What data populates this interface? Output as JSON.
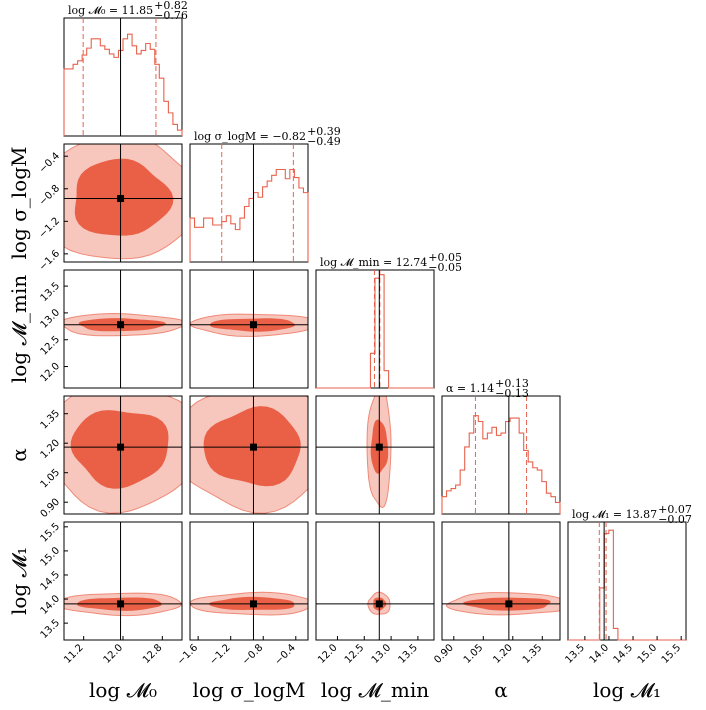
{
  "chart_data": {
    "type": "corner",
    "colors": {
      "hist": "#e8624c",
      "inner": "#ea6047",
      "outer": "#f7c6bd",
      "outer_line": "#ef8a78",
      "marker": "#000000",
      "axes": "#000000"
    },
    "parameters": [
      {
        "key": "logM0",
        "label": "log 𝓜₀",
        "range": [
          10.8,
          13.2
        ],
        "ticks": [
          11.2,
          12.0,
          12.8
        ],
        "tick_labels": [
          "11.2",
          "12.0",
          "12.8"
        ],
        "best": 11.95,
        "q16": 11.19,
        "q50": 11.85,
        "q84": 12.67,
        "title": "log 𝓜₀ = 11.85",
        "sup": "+0.82",
        "sub": "−0.76",
        "hist": [
          0.58,
          0.58,
          0.62,
          0.65,
          0.7,
          0.76,
          0.84,
          0.84,
          0.78,
          0.75,
          0.71,
          0.68,
          0.74,
          0.84,
          0.88,
          0.78,
          0.71,
          0.74,
          0.8,
          0.75,
          0.62,
          0.5,
          0.3,
          0.2,
          0.1,
          0.05
        ]
      },
      {
        "key": "logsigma",
        "label": "log σ_logM",
        "range": [
          -1.7,
          -0.25
        ],
        "ticks": [
          -1.6,
          -1.2,
          -0.8,
          -0.4
        ],
        "tick_labels": [
          "−1.6",
          "−1.2",
          "−0.8",
          "−0.4"
        ],
        "best": -0.92,
        "q16": -1.31,
        "q50": -0.82,
        "q84": -0.43,
        "title": "log σ_logM = −0.82",
        "sup": "+0.39",
        "sub": "−0.49",
        "hist": [
          0.38,
          0.3,
          0.3,
          0.38,
          0.38,
          0.32,
          0.32,
          0.35,
          0.4,
          0.33,
          0.28,
          0.38,
          0.48,
          0.55,
          0.6,
          0.56,
          0.65,
          0.7,
          0.75,
          0.8,
          0.8,
          0.72,
          0.8,
          0.73,
          0.64,
          0.6
        ]
      },
      {
        "key": "logMmin",
        "label": "log 𝓜_min",
        "range": [
          11.6,
          13.8
        ],
        "ticks": [
          12.0,
          12.5,
          13.0,
          13.5
        ],
        "tick_labels": [
          "12.0",
          "12.5",
          "13.0",
          "13.5"
        ],
        "best": 12.78,
        "q16": 12.69,
        "q50": 12.74,
        "q84": 12.79,
        "title": "log 𝓜_min = 12.74",
        "sup": "+0.05",
        "sub": "−0.05",
        "hist": [
          0.0,
          0.0,
          0.0,
          0.0,
          0.0,
          0.0,
          0.0,
          0.0,
          0.0,
          0.0,
          0.0,
          0.0,
          0.3,
          0.95,
          0.98,
          0.15,
          0.0,
          0.0,
          0.0,
          0.0,
          0.0,
          0.0,
          0.0,
          0.0,
          0.0,
          0.0
        ]
      },
      {
        "key": "alpha",
        "label": "α",
        "range": [
          0.84,
          1.44
        ],
        "ticks": [
          0.9,
          1.05,
          1.2,
          1.35
        ],
        "tick_labels": [
          "0.90",
          "1.05",
          "1.20",
          "1.35"
        ],
        "best": 1.18,
        "q16": 1.01,
        "q50": 1.14,
        "q84": 1.27,
        "title": "α = 1.14",
        "sup": "+0.13",
        "sub": "−0.13",
        "hist": [
          0.15,
          0.2,
          0.22,
          0.25,
          0.38,
          0.58,
          0.7,
          0.85,
          0.8,
          0.65,
          0.7,
          0.75,
          0.68,
          0.7,
          0.8,
          0.83,
          0.83,
          0.7,
          0.55,
          0.45,
          0.4,
          0.38,
          0.28,
          0.18,
          0.15,
          0.1
        ]
      },
      {
        "key": "logM1",
        "label": "log 𝓜₁",
        "range": [
          13.15,
          15.6
        ],
        "ticks": [
          13.5,
          14.0,
          14.5,
          15.0,
          15.5
        ],
        "tick_labels": [
          "13.5",
          "14.0",
          "14.5",
          "15.0",
          "15.5"
        ],
        "best": 13.9,
        "q16": 13.8,
        "q50": 13.87,
        "q84": 13.94,
        "title": "log 𝓜₁ = 13.87",
        "sup": "+0.07",
        "sub": "−0.07",
        "hist": [
          0.0,
          0.0,
          0.0,
          0.0,
          0.0,
          0.0,
          0.0,
          0.45,
          0.92,
          0.95,
          0.1,
          0.0,
          0.0,
          0.0,
          0.0,
          0.0,
          0.0,
          0.0,
          0.0,
          0.0,
          0.0,
          0.0,
          0.0,
          0.0,
          0.0,
          0.0
        ]
      }
    ],
    "y_axis_labels": [
      "log σ_logM",
      "log 𝓜_min",
      "α",
      "log 𝓜₁"
    ],
    "y_ticks": {
      "logsigma": {
        "ticks": [
          -0.4,
          -0.8,
          -1.2,
          -1.6
        ],
        "labels": [
          "−0.4",
          "−0.8",
          "−1.2",
          "−1.6"
        ]
      },
      "logMmin": {
        "ticks": [
          13.5,
          13.0,
          12.5,
          12.0
        ],
        "labels": [
          "13.5",
          "13.0",
          "12.5",
          "12.0"
        ]
      },
      "alpha": {
        "ticks": [
          1.35,
          1.2,
          1.05,
          0.9
        ],
        "labels": [
          "1.35",
          "1.20",
          "1.05",
          "0.90"
        ]
      },
      "logM1": {
        "ticks": [
          15.5,
          15.0,
          14.5,
          14.0,
          13.5
        ],
        "labels": [
          "15.5",
          "15.0",
          "14.5",
          "14.0",
          "13.5"
        ]
      }
    }
  }
}
